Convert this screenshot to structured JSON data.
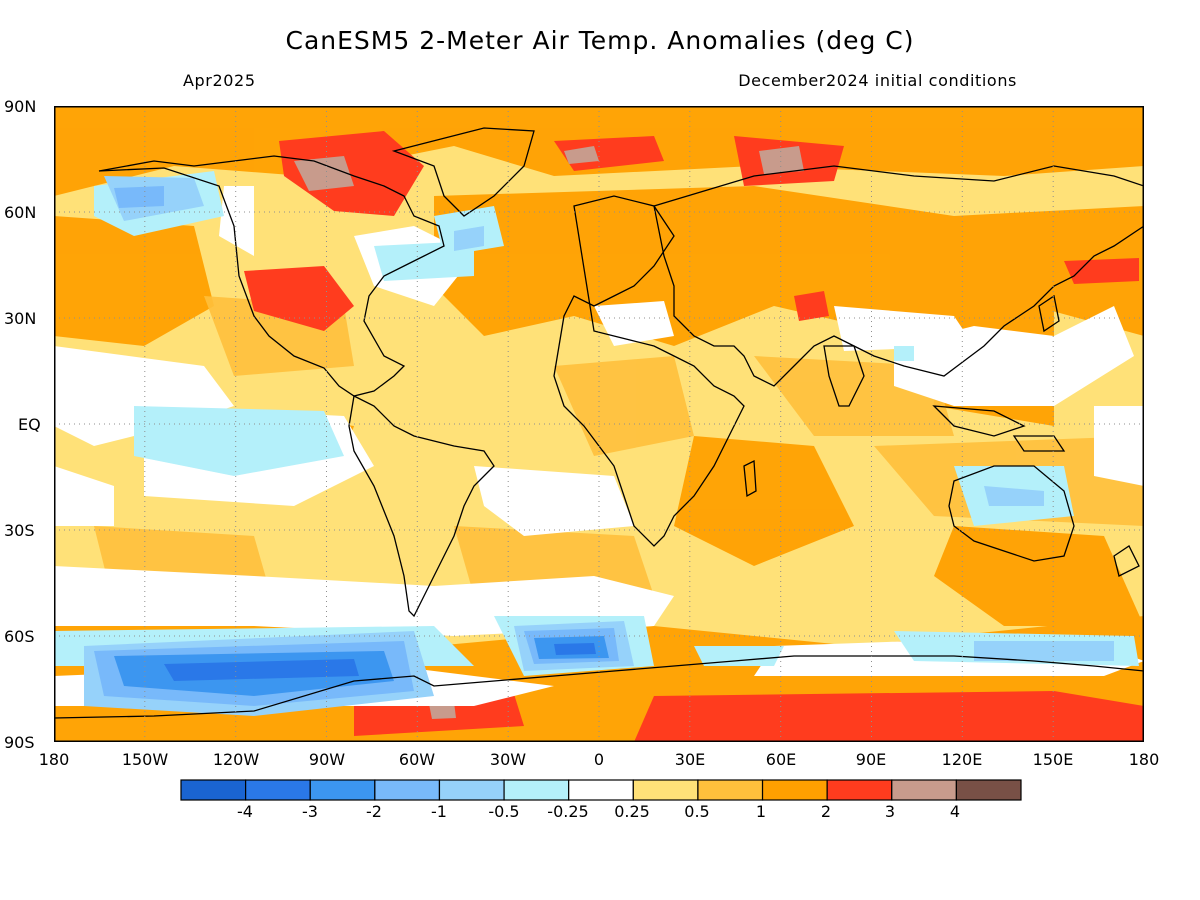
{
  "title": "CanESM5 2-Meter Air Temp. Anomalies (deg C)",
  "subtitle_left": "Apr2025",
  "subtitle_right": "December2024 initial conditions",
  "lat_labels": [
    "90N",
    "60N",
    "30N",
    "EQ",
    "30S",
    "60S",
    "90S"
  ],
  "lon_labels": [
    "180",
    "150W",
    "120W",
    "90W",
    "60W",
    "30W",
    "0",
    "30E",
    "60E",
    "90E",
    "120E",
    "150E",
    "180"
  ],
  "colorbar": {
    "colors": [
      "#1a64d2",
      "#2a78e8",
      "#3c96f0",
      "#78b9fa",
      "#96d2fa",
      "#b4f0fa",
      "#ffffff",
      "#ffe178",
      "#ffc03c",
      "#ffa000",
      "#ff3c1e",
      "#c89b8c",
      "#785046"
    ],
    "labels": [
      "-4",
      "-3",
      "-2",
      "-1",
      "-0.5",
      "-0.25",
      "0.25",
      "0.5",
      "1",
      "2",
      "3",
      "4"
    ]
  },
  "map_colors": {
    "background": "#ffe178",
    "weak_positive": "#ffc03c",
    "positive": "#ffa000",
    "strong_positive": "#ff3c1e",
    "extreme_positive": "#c89b8c",
    "neutral": "#ffffff",
    "weak_negative": "#b4f0fa",
    "negative": "#96d2fa",
    "strong_negative": "#78b9fa",
    "very_negative": "#3c96f0",
    "extreme_negative": "#2a78e8",
    "coastline": "#000000",
    "grid": "#9a9a9a"
  }
}
